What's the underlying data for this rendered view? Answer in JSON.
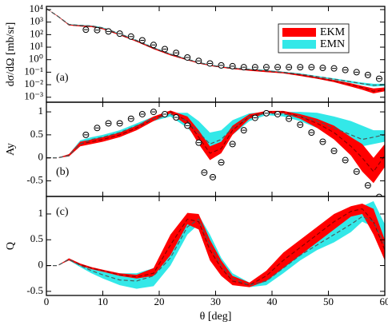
{
  "chart_data": [
    {
      "type": "band",
      "ylabel": "dσ/dΩ [mb/sr]",
      "annotation": "(a)",
      "log_y": true,
      "legend": "upper right",
      "xlim": [
        0,
        60
      ],
      "ylim": [
        0.0004,
        18000
      ],
      "yticks": [
        {
          "value": 0.001,
          "label": "10⁻³"
        },
        {
          "value": 0.01,
          "label": "10⁻²"
        },
        {
          "value": 0.1,
          "label": "10⁻¹"
        },
        {
          "value": 1,
          "label": "10⁰"
        },
        {
          "value": 10,
          "label": "10¹"
        },
        {
          "value": 100,
          "label": "10²"
        },
        {
          "value": 1000,
          "label": "10³"
        },
        {
          "value": 10000,
          "label": "10⁴"
        }
      ],
      "x": [
        0,
        2,
        4,
        6,
        8,
        10,
        13,
        16,
        19,
        22,
        25,
        27,
        29,
        31,
        33,
        36,
        39,
        42,
        45,
        48,
        51,
        54,
        56,
        58,
        60
      ],
      "series": [
        {
          "name": "EKM",
          "color": "#ff0000",
          "line_color": "#8b0000",
          "values": [
            12000,
            3000,
            600,
            500,
            450,
            300,
            100,
            30,
            8,
            2.5,
            1,
            0.55,
            0.35,
            0.25,
            0.2,
            0.15,
            0.12,
            0.09,
            0.06,
            0.035,
            0.02,
            0.01,
            0.006,
            0.003,
            0.004
          ],
          "lower": [
            12000,
            2800,
            550,
            450,
            400,
            270,
            90,
            27,
            7,
            2.2,
            0.9,
            0.5,
            0.32,
            0.23,
            0.18,
            0.13,
            0.1,
            0.08,
            0.05,
            0.03,
            0.016,
            0.007,
            0.004,
            0.002,
            0.003
          ],
          "upper": [
            12000,
            3200,
            650,
            550,
            500,
            330,
            110,
            33,
            9,
            2.8,
            1.1,
            0.6,
            0.38,
            0.28,
            0.22,
            0.17,
            0.14,
            0.1,
            0.07,
            0.04,
            0.024,
            0.013,
            0.008,
            0.005,
            0.006
          ]
        },
        {
          "name": "EMN",
          "color": "#33e8e8",
          "line_color": "#4a5a5a",
          "values": [
            12000,
            3000,
            650,
            550,
            500,
            350,
            120,
            35,
            9,
            2.8,
            1.1,
            0.6,
            0.38,
            0.27,
            0.22,
            0.17,
            0.13,
            0.1,
            0.07,
            0.045,
            0.028,
            0.017,
            0.012,
            0.009,
            0.01
          ],
          "lower": [
            12000,
            2800,
            600,
            500,
            460,
            320,
            110,
            32,
            8,
            2.5,
            1,
            0.55,
            0.35,
            0.25,
            0.2,
            0.15,
            0.12,
            0.09,
            0.06,
            0.04,
            0.024,
            0.014,
            0.01,
            0.007,
            0.008
          ],
          "upper": [
            12000,
            3200,
            700,
            600,
            540,
            380,
            130,
            38,
            10,
            3.1,
            1.2,
            0.65,
            0.41,
            0.29,
            0.24,
            0.19,
            0.15,
            0.11,
            0.08,
            0.05,
            0.032,
            0.02,
            0.015,
            0.012,
            0.012
          ]
        }
      ],
      "points": {
        "x": [
          7,
          9,
          11,
          13,
          15,
          17,
          19,
          21,
          23,
          25,
          27,
          29,
          31,
          33,
          35,
          37,
          39,
          41,
          43,
          45,
          47,
          49,
          51,
          53,
          55,
          57,
          59
        ],
        "values": [
          250,
          230,
          180,
          120,
          70,
          35,
          15,
          7,
          3.5,
          1.5,
          0.8,
          0.5,
          0.35,
          0.3,
          0.25,
          0.25,
          0.25,
          0.25,
          0.25,
          0.25,
          0.25,
          0.22,
          0.2,
          0.15,
          0.1,
          0.06,
          0.03
        ]
      }
    },
    {
      "type": "band",
      "ylabel": "Ay",
      "annotation": "(b)",
      "xlim": [
        0,
        60
      ],
      "ylim": [
        -0.84,
        1.21
      ],
      "yticks": [
        -0.5,
        0,
        0.5,
        1
      ],
      "x": [
        0,
        2,
        4,
        6,
        8,
        10,
        13,
        16,
        19,
        22,
        25,
        27,
        29,
        31,
        33,
        36,
        39,
        42,
        45,
        48,
        51,
        54,
        56,
        58,
        60
      ],
      "series": [
        {
          "name": "EKM",
          "color": "#ff0000",
          "line_color": "#8b0000",
          "values": [
            0,
            0,
            0.05,
            0.3,
            0.35,
            0.4,
            0.5,
            0.65,
            0.85,
            1.0,
            0.8,
            0.45,
            0.1,
            0.2,
            0.6,
            0.9,
            1.0,
            1.0,
            0.9,
            0.75,
            0.55,
            0.25,
            0.0,
            -0.3,
            0.05
          ],
          "lower": [
            0,
            0,
            0.03,
            0.25,
            0.3,
            0.35,
            0.45,
            0.6,
            0.8,
            0.97,
            0.7,
            0.3,
            -0.05,
            0.1,
            0.5,
            0.85,
            0.97,
            0.97,
            0.85,
            0.65,
            0.4,
            0.05,
            -0.3,
            -0.55,
            -0.2
          ],
          "upper": [
            0,
            0,
            0.08,
            0.35,
            0.4,
            0.45,
            0.55,
            0.7,
            0.9,
            1.03,
            0.9,
            0.6,
            0.25,
            0.35,
            0.7,
            0.95,
            1.02,
            1.02,
            0.95,
            0.85,
            0.7,
            0.45,
            0.3,
            0.0,
            0.3
          ]
        },
        {
          "name": "EMN",
          "color": "#33e8e8",
          "line_color": "#4a5a5a",
          "values": [
            0,
            0,
            0.05,
            0.3,
            0.4,
            0.45,
            0.55,
            0.7,
            0.85,
            0.95,
            0.8,
            0.55,
            0.3,
            0.4,
            0.65,
            0.9,
            0.97,
            0.95,
            0.9,
            0.8,
            0.65,
            0.5,
            0.4,
            0.45,
            0.5
          ],
          "lower": [
            0,
            0,
            0.03,
            0.28,
            0.37,
            0.42,
            0.5,
            0.65,
            0.8,
            0.9,
            0.65,
            0.4,
            0.15,
            0.25,
            0.5,
            0.8,
            0.93,
            0.9,
            0.8,
            0.65,
            0.5,
            0.35,
            0.25,
            0.3,
            0.35
          ],
          "upper": [
            0,
            0,
            0.08,
            0.38,
            0.45,
            0.5,
            0.6,
            0.75,
            0.9,
            0.98,
            0.98,
            0.8,
            0.55,
            0.6,
            0.82,
            0.97,
            1.0,
            1.0,
            1.0,
            0.98,
            0.9,
            0.8,
            0.7,
            0.6,
            0.6
          ]
        }
      ],
      "points": {
        "x": [
          7,
          9,
          11,
          13,
          15,
          17,
          19,
          21,
          23,
          25,
          27,
          28,
          29.5,
          31,
          33,
          35,
          37,
          39,
          41,
          43,
          45,
          47,
          49,
          51,
          53,
          55,
          57,
          59
        ],
        "values": [
          0.5,
          0.65,
          0.75,
          0.75,
          0.85,
          0.95,
          1.0,
          0.95,
          0.88,
          0.7,
          0.33,
          -0.32,
          -0.42,
          -0.1,
          0.3,
          0.6,
          0.87,
          0.97,
          0.95,
          0.85,
          0.72,
          0.55,
          0.35,
          0.15,
          -0.05,
          -0.3,
          -0.6,
          -0.85
        ]
      }
    },
    {
      "type": "band",
      "ylabel": "Q",
      "annotation": "(c)",
      "xlabel": "θ [deg]",
      "xlim": [
        0,
        60
      ],
      "xticks": [
        0,
        10,
        20,
        30,
        40,
        50,
        60
      ],
      "ylim": [
        -0.58,
        1.34
      ],
      "yticks": [
        -0.5,
        0,
        0.5,
        1
      ],
      "x": [
        0,
        2,
        4,
        6,
        8,
        10,
        13,
        16,
        19,
        22,
        25,
        27,
        29,
        31,
        33,
        36,
        39,
        42,
        45,
        48,
        51,
        54,
        56,
        58,
        60
      ],
      "series": [
        {
          "name": "EKM",
          "color": "#ff0000",
          "line_color": "#8b0000",
          "values": [
            0,
            0,
            0.12,
            0.02,
            -0.05,
            -0.1,
            -0.18,
            -0.22,
            -0.15,
            0.4,
            0.9,
            0.85,
            0.3,
            -0.05,
            -0.3,
            -0.38,
            -0.2,
            0.1,
            0.35,
            0.6,
            0.85,
            1.05,
            1.1,
            0.85,
            0.3
          ],
          "lower": [
            0,
            0,
            0.1,
            0,
            -0.07,
            -0.12,
            -0.2,
            -0.25,
            -0.2,
            0.2,
            0.8,
            0.7,
            0.1,
            -0.2,
            -0.38,
            -0.42,
            -0.3,
            -0.05,
            0.2,
            0.45,
            0.7,
            0.95,
            1.0,
            0.6,
            0.1
          ],
          "upper": [
            0,
            0,
            0.14,
            0.04,
            -0.03,
            -0.08,
            -0.15,
            -0.18,
            -0.05,
            0.6,
            1.02,
            1.0,
            0.5,
            0.1,
            -0.2,
            -0.33,
            -0.1,
            0.25,
            0.5,
            0.75,
            1.0,
            1.15,
            1.2,
            1.1,
            0.5
          ]
        },
        {
          "name": "EMN",
          "color": "#33e8e8",
          "line_color": "#4a5a5a",
          "values": [
            0,
            0,
            0.12,
            0,
            -0.1,
            -0.18,
            -0.28,
            -0.3,
            -0.2,
            0.15,
            0.75,
            0.9,
            0.4,
            0.0,
            -0.25,
            -0.38,
            -0.3,
            -0.05,
            0.2,
            0.4,
            0.6,
            0.8,
            0.95,
            0.85,
            0.4
          ],
          "lower": [
            0,
            0,
            0.1,
            -0.03,
            -0.15,
            -0.25,
            -0.38,
            -0.45,
            -0.4,
            0.0,
            0.6,
            0.8,
            0.25,
            -0.12,
            -0.33,
            -0.42,
            -0.38,
            -0.15,
            0.1,
            0.3,
            0.45,
            0.65,
            0.85,
            0.75,
            0.2
          ],
          "upper": [
            0,
            0,
            0.14,
            0.03,
            -0.05,
            -0.1,
            -0.15,
            -0.15,
            -0.05,
            0.35,
            0.85,
            0.98,
            0.6,
            0.15,
            -0.15,
            -0.33,
            -0.2,
            0.05,
            0.3,
            0.5,
            0.75,
            0.95,
            1.15,
            1.25,
            0.8
          ]
        }
      ]
    }
  ]
}
